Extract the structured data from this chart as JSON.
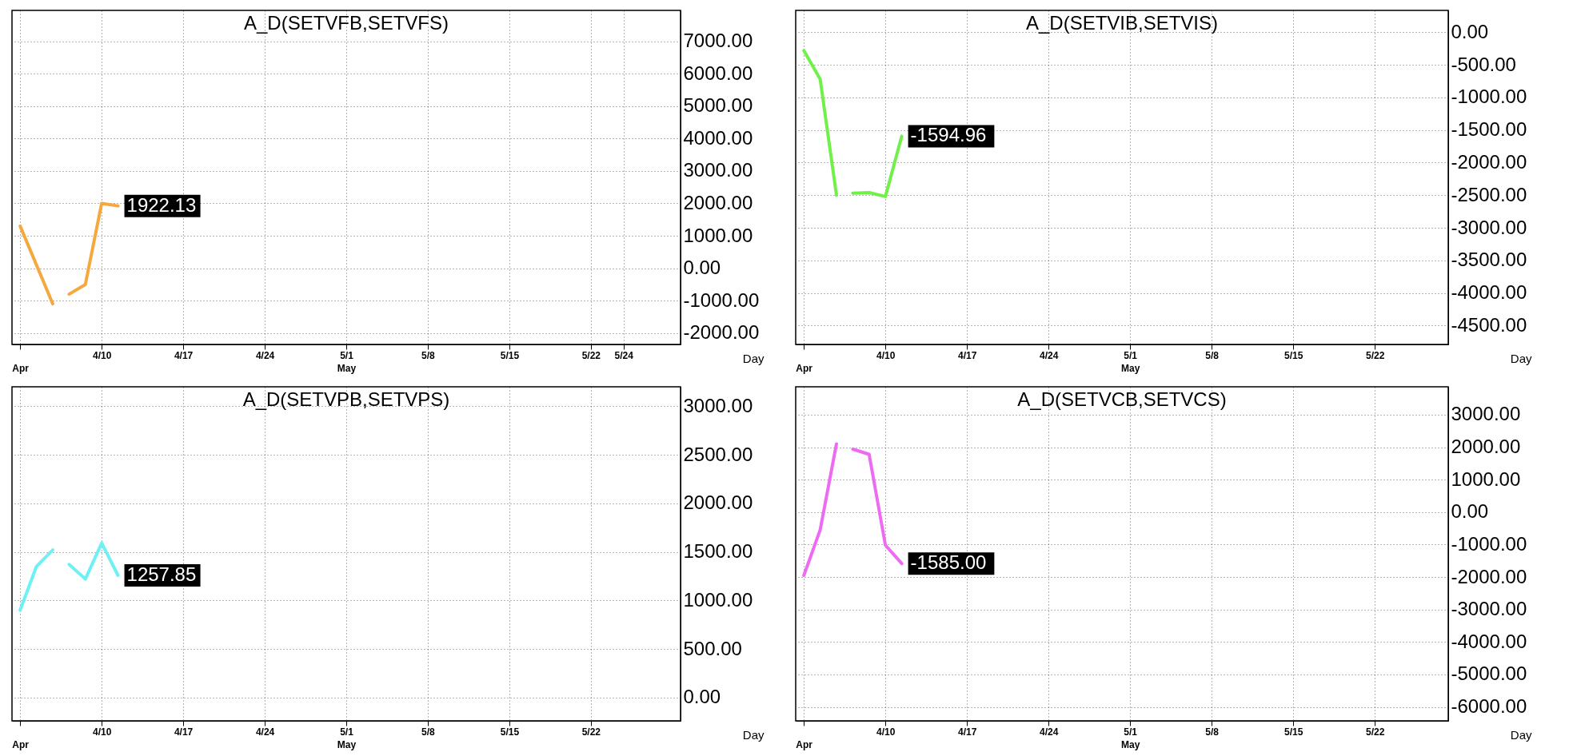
{
  "chart_data": [
    {
      "type": "line",
      "title": "A_D(SETVFB,SETVFS)",
      "xlabel": "Day",
      "categories": [
        "\nApr",
        null,
        null,
        null,
        null,
        "4/10",
        null,
        null,
        null,
        null,
        "4/17",
        null,
        null,
        null,
        null,
        "4/24",
        null,
        null,
        null,
        null,
        "5/1\nMay",
        null,
        null,
        null,
        null,
        "5/8",
        null,
        null,
        null,
        null,
        "5/15",
        null,
        null,
        null,
        null,
        "5/22",
        null,
        "5/24",
        null,
        null,
        null
      ],
      "series": [
        {
          "color": "#f5a83d",
          "values": [
            1300,
            100,
            -1100,
            null,
            null,
            null,
            null,
            null,
            null,
            null,
            null,
            null,
            null,
            null,
            null,
            null,
            null,
            null,
            null,
            null,
            null,
            null,
            null,
            null,
            null,
            null,
            null,
            null,
            null,
            null,
            null,
            null,
            null,
            null,
            null,
            null,
            null,
            null,
            null,
            null,
            null
          ]
        },
        {
          "color": "#f5a83d",
          "values": [
            null,
            null,
            null,
            -800,
            -500,
            2000,
            1922.13,
            null,
            null,
            null,
            null,
            null,
            null,
            null,
            null,
            null,
            null,
            null,
            null,
            null,
            null,
            null,
            null,
            null,
            null,
            null,
            null,
            null,
            null,
            null,
            null,
            null,
            null,
            null,
            null,
            null,
            null,
            null,
            null,
            null,
            null
          ],
          "value_labels": [
            null,
            null,
            null,
            null,
            null,
            null,
            "1922.13",
            null,
            null,
            null,
            null,
            null,
            null,
            null,
            null,
            null,
            null,
            null,
            null,
            null,
            null,
            null,
            null,
            null,
            null,
            null,
            null,
            null,
            null,
            null,
            null,
            null,
            null,
            null,
            null,
            null,
            null,
            null,
            null,
            null,
            null
          ]
        }
      ],
      "ylim": [
        -2350,
        7950
      ],
      "yticks": [
        {
          "value": 7000,
          "label": "7000.00"
        },
        {
          "value": 6000,
          "label": "6000.00"
        },
        {
          "value": 5000,
          "label": "5000.00"
        },
        {
          "value": 4000,
          "label": "4000.00"
        },
        {
          "value": 3000,
          "label": "3000.00"
        },
        {
          "value": 2000,
          "label": "2000.00"
        },
        {
          "value": 1000,
          "label": "1000.00"
        },
        {
          "value": 0,
          "label": "0.00"
        },
        {
          "value": -1000,
          "label": "-1000.00"
        },
        {
          "value": -2000,
          "label": "-2000.00"
        }
      ],
      "grid": true
    },
    {
      "type": "line",
      "title": "A_D(SETVIB,SETVIS)",
      "xlabel": "Day",
      "categories": [
        "\nApr",
        null,
        null,
        null,
        null,
        "4/10",
        null,
        null,
        null,
        null,
        "4/17",
        null,
        null,
        null,
        null,
        "4/24",
        null,
        null,
        null,
        null,
        "5/1\nMay",
        null,
        null,
        null,
        null,
        "5/8",
        null,
        null,
        null,
        null,
        "5/15",
        null,
        null,
        null,
        null,
        "5/22",
        null,
        null,
        null,
        null
      ],
      "series": [
        {
          "color": "#72f04a",
          "values": [
            -280,
            -720,
            -2500,
            null,
            null,
            null,
            null,
            null,
            null,
            null,
            null,
            null,
            null,
            null,
            null,
            null,
            null,
            null,
            null,
            null,
            null,
            null,
            null,
            null,
            null,
            null,
            null,
            null,
            null,
            null,
            null,
            null,
            null,
            null,
            null,
            null,
            null,
            null,
            null,
            null
          ]
        },
        {
          "color": "#72f04a",
          "values": [
            null,
            null,
            null,
            -2470,
            -2460,
            -2520,
            -1594.96,
            null,
            null,
            null,
            null,
            null,
            null,
            null,
            null,
            null,
            null,
            null,
            null,
            null,
            null,
            null,
            null,
            null,
            null,
            null,
            null,
            null,
            null,
            null,
            null,
            null,
            null,
            null,
            null,
            null,
            null,
            null,
            null,
            null
          ],
          "value_labels": [
            null,
            null,
            null,
            null,
            null,
            null,
            "-1594.96",
            null,
            null,
            null,
            null,
            null,
            null,
            null,
            null,
            null,
            null,
            null,
            null,
            null,
            null,
            null,
            null,
            null,
            null,
            null,
            null,
            null,
            null,
            null,
            null,
            null,
            null,
            null,
            null,
            null,
            null,
            null,
            null,
            null
          ]
        }
      ],
      "ylim": [
        -4790,
        335
      ],
      "yticks": [
        {
          "value": 0,
          "label": "0.00"
        },
        {
          "value": -500,
          "label": "-500.00"
        },
        {
          "value": -1000,
          "label": "-1000.00"
        },
        {
          "value": -1500,
          "label": "-1500.00"
        },
        {
          "value": -2000,
          "label": "-2000.00"
        },
        {
          "value": -2500,
          "label": "-2500.00"
        },
        {
          "value": -3000,
          "label": "-3000.00"
        },
        {
          "value": -3500,
          "label": "-3500.00"
        },
        {
          "value": -4000,
          "label": "-4000.00"
        },
        {
          "value": -4500,
          "label": "-4500.00"
        }
      ],
      "grid": true
    },
    {
      "type": "line",
      "title": "A_D(SETVPB,SETVPS)",
      "xlabel": "Day",
      "categories": [
        "\nApr",
        null,
        null,
        null,
        null,
        "4/10",
        null,
        null,
        null,
        null,
        "4/17",
        null,
        null,
        null,
        null,
        "4/24",
        null,
        null,
        null,
        null,
        "5/1\nMay",
        null,
        null,
        null,
        null,
        "5/8",
        null,
        null,
        null,
        null,
        "5/15",
        null,
        null,
        null,
        null,
        "5/22",
        null,
        null,
        null,
        null,
        null
      ],
      "series": [
        {
          "color": "#6ef0f5",
          "values": [
            900,
            1350,
            1520,
            null,
            null,
            null,
            null,
            null,
            null,
            null,
            null,
            null,
            null,
            null,
            null,
            null,
            null,
            null,
            null,
            null,
            null,
            null,
            null,
            null,
            null,
            null,
            null,
            null,
            null,
            null,
            null,
            null,
            null,
            null,
            null,
            null,
            null,
            null,
            null,
            null,
            null
          ]
        },
        {
          "color": "#6ef0f5",
          "values": [
            null,
            null,
            null,
            1370,
            1220,
            1590,
            1257.85,
            null,
            null,
            null,
            null,
            null,
            null,
            null,
            null,
            null,
            null,
            null,
            null,
            null,
            null,
            null,
            null,
            null,
            null,
            null,
            null,
            null,
            null,
            null,
            null,
            null,
            null,
            null,
            null,
            null,
            null,
            null,
            null,
            null,
            null
          ],
          "value_labels": [
            null,
            null,
            null,
            null,
            null,
            null,
            "1257.85",
            null,
            null,
            null,
            null,
            null,
            null,
            null,
            null,
            null,
            null,
            null,
            null,
            null,
            null,
            null,
            null,
            null,
            null,
            null,
            null,
            null,
            null,
            null,
            null,
            null,
            null,
            null,
            null,
            null,
            null,
            null,
            null,
            null,
            null
          ]
        }
      ],
      "ylim": [
        -240,
        3200
      ],
      "yticks": [
        {
          "value": 3000,
          "label": "3000.00"
        },
        {
          "value": 2500,
          "label": "2500.00"
        },
        {
          "value": 2000,
          "label": "2000.00"
        },
        {
          "value": 1500,
          "label": "1500.00"
        },
        {
          "value": 1000,
          "label": "1000.00"
        },
        {
          "value": 500,
          "label": "500.00"
        },
        {
          "value": 0,
          "label": "0.00"
        }
      ],
      "grid": true
    },
    {
      "type": "line",
      "title": "A_D(SETVCB,SETVCS)",
      "xlabel": "Day",
      "categories": [
        "\nApr",
        null,
        null,
        null,
        null,
        "4/10",
        null,
        null,
        null,
        null,
        "4/17",
        null,
        null,
        null,
        null,
        "4/24",
        null,
        null,
        null,
        null,
        "5/1\nMay",
        null,
        null,
        null,
        null,
        "5/8",
        null,
        null,
        null,
        null,
        "5/15",
        null,
        null,
        null,
        null,
        "5/22",
        null,
        null,
        null,
        null
      ],
      "series": [
        {
          "color": "#ee6af2",
          "values": [
            -1950,
            -550,
            2100,
            null,
            null,
            null,
            null,
            null,
            null,
            null,
            null,
            null,
            null,
            null,
            null,
            null,
            null,
            null,
            null,
            null,
            null,
            null,
            null,
            null,
            null,
            null,
            null,
            null,
            null,
            null,
            null,
            null,
            null,
            null,
            null,
            null,
            null,
            null,
            null,
            null
          ]
        },
        {
          "color": "#ee6af2",
          "values": [
            null,
            null,
            null,
            1940,
            1780,
            -1020,
            -1585,
            null,
            null,
            null,
            null,
            null,
            null,
            null,
            null,
            null,
            null,
            null,
            null,
            null,
            null,
            null,
            null,
            null,
            null,
            null,
            null,
            null,
            null,
            null,
            null,
            null,
            null,
            null,
            null,
            null,
            null,
            null,
            null,
            null
          ],
          "value_labels": [
            null,
            null,
            null,
            null,
            null,
            null,
            "-1585.00",
            null,
            null,
            null,
            null,
            null,
            null,
            null,
            null,
            null,
            null,
            null,
            null,
            null,
            null,
            null,
            null,
            null,
            null,
            null,
            null,
            null,
            null,
            null,
            null,
            null,
            null,
            null,
            null,
            null,
            null,
            null,
            null,
            null
          ]
        }
      ],
      "ylim": [
        -6430,
        3860
      ],
      "yticks": [
        {
          "value": 3000,
          "label": "3000.00"
        },
        {
          "value": 2000,
          "label": "2000.00"
        },
        {
          "value": 1000,
          "label": "1000.00"
        },
        {
          "value": 0,
          "label": "0.00"
        },
        {
          "value": -1000,
          "label": "-1000.00"
        },
        {
          "value": -2000,
          "label": "-2000.00"
        },
        {
          "value": -3000,
          "label": "-3000.00"
        },
        {
          "value": -4000,
          "label": "-4000.00"
        },
        {
          "value": -5000,
          "label": "-5000.00"
        },
        {
          "value": -6000,
          "label": "-6000.00"
        }
      ],
      "grid": true
    }
  ]
}
